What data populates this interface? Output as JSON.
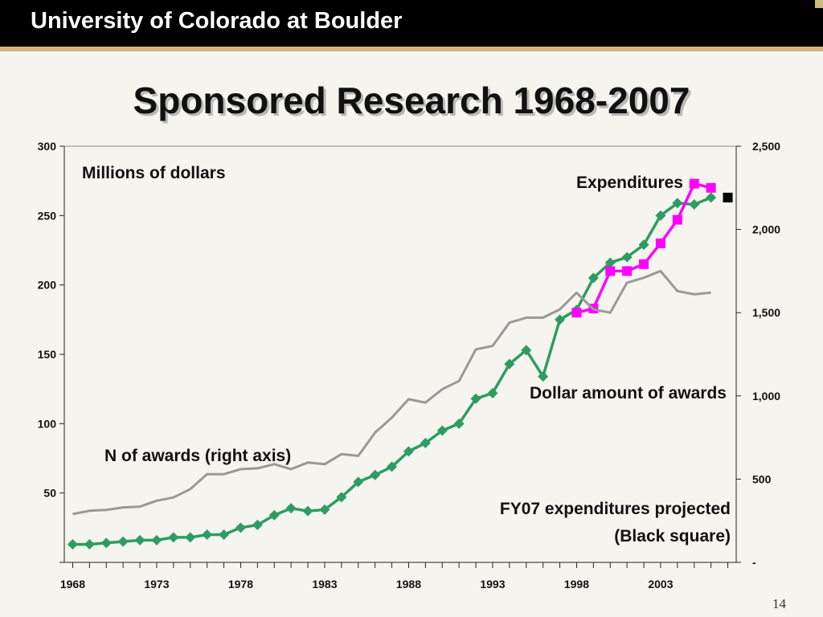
{
  "header": {
    "institution": "University of Colorado at Boulder"
  },
  "slide": {
    "title": "Sponsored Research 1968-2007",
    "page_number": "14"
  },
  "chart_data": {
    "type": "line",
    "x_ticks": [
      "1968",
      "1973",
      "1978",
      "1983",
      "1988",
      "1993",
      "1998",
      "2003"
    ],
    "y_left": {
      "ticks": [
        "50",
        "100",
        "150",
        "200",
        "250",
        "300"
      ],
      "range": [
        0,
        300
      ]
    },
    "y_right": {
      "ticks": [
        "-",
        "500",
        "1,000",
        "1,500",
        "2,000",
        "2,500"
      ],
      "range": [
        0,
        2500
      ]
    },
    "series": [
      {
        "name": "Dollar amount of awards",
        "axis": "left",
        "color": "#2e9c62",
        "marker": "diamond",
        "x": [
          1968,
          1969,
          1970,
          1971,
          1972,
          1973,
          1974,
          1975,
          1976,
          1977,
          1978,
          1979,
          1980,
          1981,
          1982,
          1983,
          1984,
          1985,
          1986,
          1987,
          1988,
          1989,
          1990,
          1991,
          1992,
          1993,
          1994,
          1995,
          1996,
          1997,
          1998,
          1999,
          2000,
          2001,
          2002,
          2003,
          2004,
          2005,
          2006
        ],
        "values": [
          13,
          13,
          14,
          15,
          16,
          16,
          18,
          18,
          20,
          20,
          25,
          27,
          34,
          39,
          37,
          38,
          47,
          58,
          63,
          69,
          80,
          86,
          95,
          100,
          118,
          122,
          143,
          153,
          134,
          175,
          182,
          205,
          216,
          220,
          229,
          250,
          259,
          258,
          263
        ]
      },
      {
        "name": "Expenditures",
        "axis": "left",
        "color": "#ff00ff",
        "marker": "square",
        "x": [
          1998,
          1999,
          2000,
          2001,
          2002,
          2003,
          2004,
          2005,
          2006
        ],
        "values": [
          180,
          183,
          210,
          210,
          215,
          230,
          247,
          273,
          270
        ]
      },
      {
        "name": "N of awards (right axis)",
        "axis": "right",
        "color": "#999999",
        "marker": "none",
        "x": [
          1968,
          1969,
          1970,
          1971,
          1972,
          1973,
          1974,
          1975,
          1976,
          1977,
          1978,
          1979,
          1980,
          1981,
          1982,
          1983,
          1984,
          1985,
          1986,
          1987,
          1988,
          1989,
          1990,
          1991,
          1992,
          1993,
          1994,
          1995,
          1996,
          1997,
          1998,
          1999,
          2000,
          2001,
          2002,
          2003,
          2004,
          2005,
          2006
        ],
        "values": [
          290,
          310,
          315,
          330,
          335,
          370,
          390,
          440,
          530,
          530,
          560,
          565,
          590,
          560,
          600,
          590,
          650,
          640,
          780,
          870,
          980,
          960,
          1040,
          1090,
          1280,
          1300,
          1440,
          1470,
          1470,
          1520,
          1620,
          1520,
          1500,
          1680,
          1710,
          1750,
          1630,
          1610,
          1620
        ]
      }
    ],
    "projection_marker": {
      "x": 2007,
      "value": 263,
      "color": "#000000"
    },
    "annotations": {
      "units": "Millions of dollars",
      "expenditures": "Expenditures",
      "awards": "Dollar amount of awards",
      "n_awards": "N of awards (right axis)",
      "projection_line1": "FY07 expenditures projected",
      "projection_line2": "(Black square)"
    }
  }
}
